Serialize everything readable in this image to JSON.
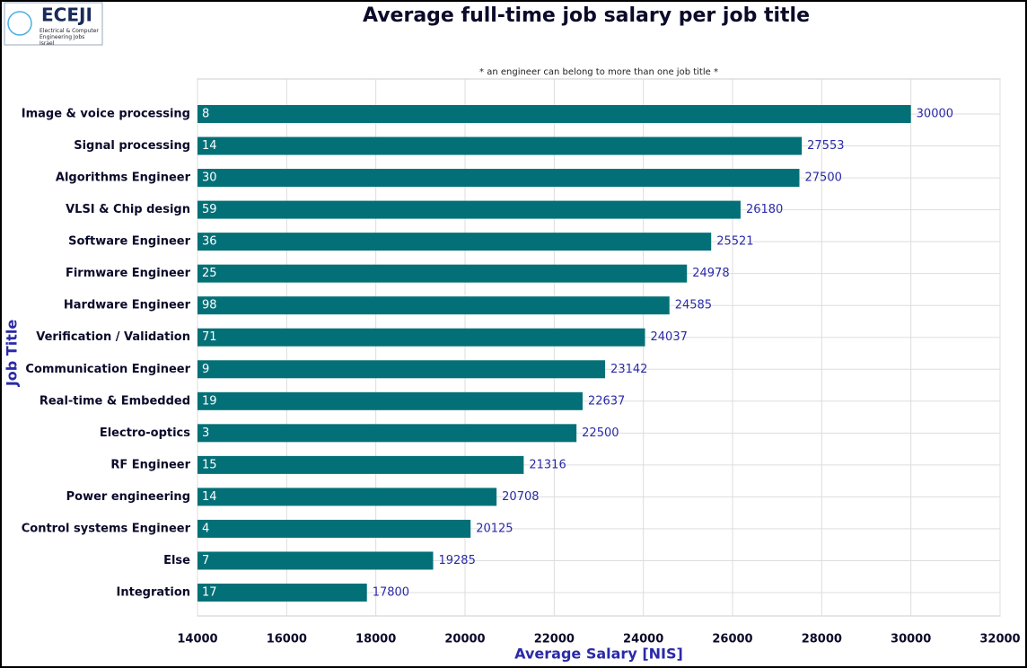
{
  "chart_data": {
    "type": "barh",
    "title": "Average full-time job salary per job title",
    "subtitle": "* an engineer can belong to more than one job title *",
    "xlabel": "Average Salary [NIS]",
    "ylabel": "Job Title",
    "logo": {
      "name": "ECEJI",
      "tagline": "Electrical & Computer Engineering Jobs Israel"
    },
    "categories": [
      "Image & voice processing",
      "Signal processing",
      "Algorithms Engineer",
      "VLSI & Chip design",
      "Software Engineer",
      "Firmware Engineer",
      "Hardware Engineer",
      "Verification / Validation",
      "Communication Engineer",
      "Real-time & Embedded",
      "Electro-optics",
      "RF Engineer",
      "Power engineering",
      "Control systems Engineer",
      "Else",
      "Integration"
    ],
    "values": [
      30000,
      27553,
      27500,
      26180,
      25521,
      24978,
      24585,
      24037,
      23142,
      22637,
      22500,
      21316,
      20708,
      20125,
      19285,
      17800
    ],
    "counts": [
      8,
      14,
      30,
      59,
      36,
      25,
      98,
      71,
      9,
      19,
      3,
      15,
      14,
      4,
      7,
      17
    ],
    "color": "#037077",
    "label_color": "#2a2aa8",
    "xlim": [
      14000,
      32000
    ],
    "xticks": [
      14000,
      16000,
      18000,
      20000,
      22000,
      24000,
      26000,
      28000,
      30000,
      32000
    ],
    "grid": true
  }
}
